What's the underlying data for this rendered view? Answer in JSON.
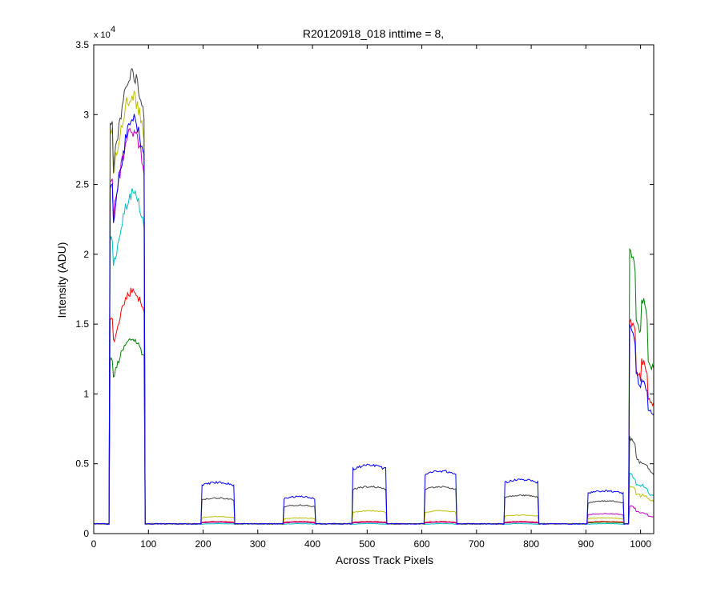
{
  "chart_data": {
    "type": "line",
    "title": "R20120918_018 inttime = 8,",
    "xlabel": "Across Track Pixels",
    "ylabel": "Intensity (ADU)",
    "y_exponent_base": "x 10",
    "y_exponent_power": "4",
    "xlim": [
      0,
      1024
    ],
    "ylim": [
      0,
      35000
    ],
    "grid": false,
    "legend": "none",
    "x_ticks": [
      0,
      100,
      200,
      300,
      400,
      500,
      600,
      700,
      800,
      900,
      1000
    ],
    "x_tick_labels": [
      "0",
      "100",
      "200",
      "300",
      "400",
      "500",
      "600",
      "700",
      "800",
      "900",
      "1000"
    ],
    "y_ticks": [
      0,
      5000,
      10000,
      15000,
      20000,
      25000,
      30000,
      35000
    ],
    "y_tick_labels": [
      "0",
      "0.5",
      "1",
      "1.5",
      "2",
      "2.5",
      "3",
      "3.5"
    ],
    "baseline": 700,
    "segments": [
      {
        "start": 30,
        "end": 93,
        "left_edge": 35
      },
      {
        "start": 197,
        "end": 257
      },
      {
        "start": 348,
        "end": 405
      },
      {
        "start": 474,
        "end": 535
      },
      {
        "start": 606,
        "end": 663
      },
      {
        "start": 751,
        "end": 813
      },
      {
        "start": 903,
        "end": 969
      },
      {
        "start": 979,
        "end": 1024
      }
    ],
    "series": [
      {
        "color": "#008000",
        "levels": [
          14000,
          800,
          800,
          800,
          800,
          800,
          800,
          12800
        ],
        "left": 13000,
        "trend": "hump",
        "tail": [
          21000,
          15500,
          17000,
          12800
        ]
      },
      {
        "color": "#ff0000",
        "levels": [
          17500,
          850,
          850,
          850,
          850,
          850,
          850,
          10000
        ],
        "left": 16000,
        "trend": "hump",
        "tail": [
          15500,
          12000,
          12500,
          10000
        ]
      },
      {
        "color": "#00bfbf",
        "levels": [
          24500,
          700,
          700,
          700,
          700,
          700,
          700,
          2900
        ],
        "left": 22000,
        "trend": "hump",
        "tail": [
          4300,
          3600,
          3500,
          2900
        ]
      },
      {
        "color": "#bf00bf",
        "levels": [
          29000,
          800,
          800,
          800,
          800,
          800,
          1400,
          1300
        ],
        "left": 26500,
        "trend": "hump",
        "tail": [
          2000,
          1600,
          1500,
          1300
        ]
      },
      {
        "color": "#bfbf00",
        "levels": [
          31500,
          1200,
          1100,
          1600,
          1600,
          1300,
          1100,
          2500
        ],
        "left": 30000,
        "trend": "hump",
        "tail": [
          3500,
          2900,
          2800,
          2500
        ]
      },
      {
        "color": "#404040",
        "levels": [
          33000,
          2500,
          2000,
          3300,
          3300,
          2700,
          2300,
          4600
        ],
        "left": 30500,
        "trend": "hump",
        "tail": [
          7000,
          5500,
          5200,
          4600
        ]
      },
      {
        "color": "#0000ff",
        "levels": [
          29800,
          3600,
          2600,
          4800,
          4400,
          3800,
          3000,
          9000
        ],
        "left": 26000,
        "trend": "hump",
        "tail": [
          15000,
          11500,
          11000,
          9000
        ]
      }
    ]
  }
}
